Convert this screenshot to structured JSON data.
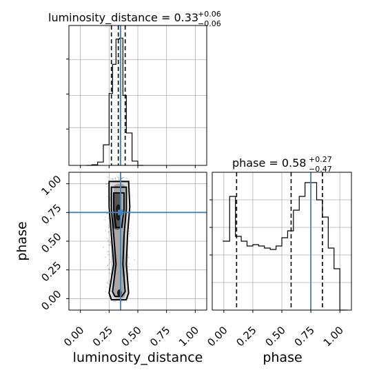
{
  "chart_data": [
    {
      "panel": "luminosity_distance marginal",
      "type": "histogram",
      "title": {
        "main": "luminosity_distance = 0.33",
        "sup": "+0.06",
        "sub": "−0.06"
      },
      "xlim": [
        -0.1,
        1.1
      ],
      "bin_edges": [
        0.05,
        0.1,
        0.15,
        0.2,
        0.25,
        0.28,
        0.31,
        0.34,
        0.37,
        0.4,
        0.45,
        0.5,
        0.55
      ],
      "counts": [
        0.0,
        0.3,
        1.7,
        10.6,
        37.0,
        52.0,
        65.0,
        65.5,
        36.0,
        16.7,
        2.2,
        0.0
      ],
      "quantiles": [
        0.27,
        0.33,
        0.39
      ],
      "truth": 0.35,
      "xticks": [
        0.0,
        0.25,
        0.5,
        0.75,
        1.0
      ],
      "grid": true
    },
    {
      "panel": "2D luminosity_distance vs phase",
      "type": "scatter",
      "xlabel": "luminosity_distance",
      "ylabel": "phase",
      "xlim": [
        -0.1,
        1.1
      ],
      "ylim": [
        -0.1,
        1.1
      ],
      "xticks": [
        "0.00",
        "0.25",
        "0.50",
        "0.75",
        "1.00"
      ],
      "yticks": [
        "0.00",
        "0.25",
        "0.50",
        "0.75",
        "1.00"
      ],
      "truth": {
        "x": 0.35,
        "y": 0.75
      },
      "contour_levels": [
        "outer",
        "middle",
        "inner"
      ],
      "density_peaks": [
        {
          "x": 0.32,
          "y": 0.76
        },
        {
          "x": 0.34,
          "y": 0.05
        }
      ],
      "grid": true
    },
    {
      "panel": "phase marginal",
      "type": "histogram",
      "title": {
        "main": "phase = 0.58",
        "sup": "+0.27",
        "sub": "−0.47"
      },
      "xlabel": "phase",
      "xlim": [
        -0.1,
        1.1
      ],
      "bin_edges": [
        -0.01,
        0.05,
        0.1,
        0.15,
        0.2,
        0.25,
        0.3,
        0.35,
        0.4,
        0.45,
        0.5,
        0.55,
        0.6,
        0.65,
        0.7,
        0.75,
        0.8,
        0.85,
        0.9,
        0.95,
        1.0,
        1.06
      ],
      "counts": [
        1.0,
        1.65,
        1.07,
        1.0,
        0.93,
        0.95,
        0.93,
        0.9,
        0.88,
        0.93,
        1.05,
        1.15,
        1.45,
        1.65,
        1.85,
        1.85,
        1.6,
        1.35,
        0.9,
        0.6,
        0.0
      ],
      "quantiles": [
        0.11,
        0.58,
        0.85
      ],
      "truth": 0.75,
      "xticks": [
        "0.00",
        "0.25",
        "0.50",
        "0.75",
        "1.00"
      ],
      "grid": true
    }
  ],
  "colors": {
    "truth": "#4682b4",
    "hist": "#000000",
    "grid": "#b0b0b0",
    "contour": "#000000"
  }
}
